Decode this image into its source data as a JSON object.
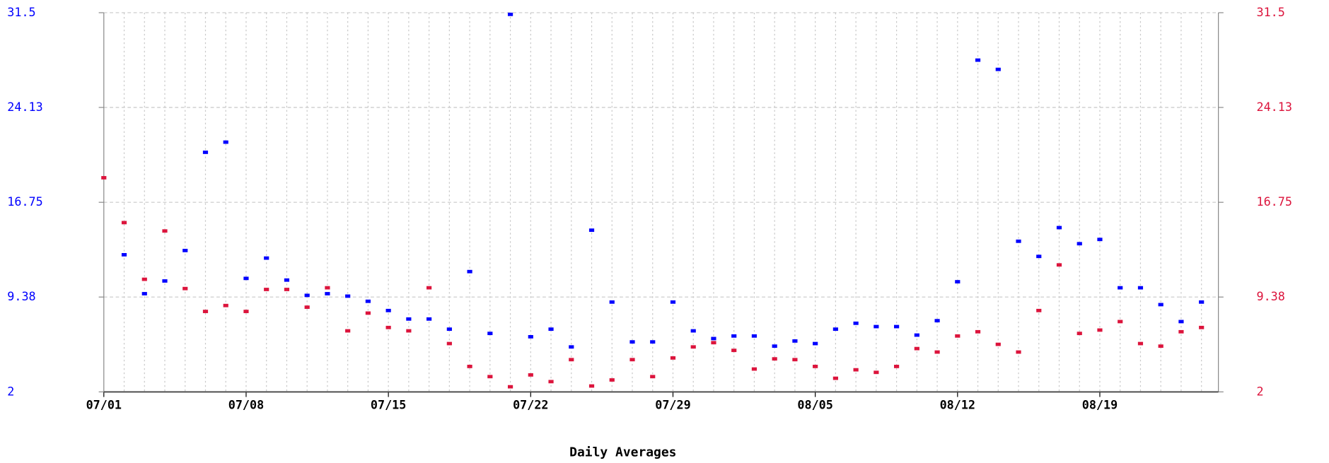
{
  "chart_data": {
    "type": "scatter",
    "title": "Daily Averages",
    "categories": [
      "07/01",
      null,
      null,
      null,
      null,
      null,
      null,
      "07/08",
      null,
      null,
      null,
      null,
      null,
      null,
      "07/15",
      null,
      null,
      null,
      null,
      null,
      null,
      "07/22",
      null,
      null,
      null,
      null,
      null,
      null,
      "07/29",
      null,
      null,
      null,
      null,
      null,
      null,
      "08/05",
      null,
      null,
      null,
      null,
      null,
      null,
      "08/12",
      null,
      null,
      null,
      null,
      null,
      null,
      "08/19",
      null,
      null,
      null,
      null,
      null
    ],
    "ylim": [
      2,
      31.5
    ],
    "yticks": [
      2,
      9.38,
      16.75,
      24.13,
      31.5
    ],
    "y2lim": [
      2,
      31.5
    ],
    "y2ticks": [
      2,
      9.38,
      16.75,
      24.13,
      31.5
    ],
    "y_color": "#0000ff",
    "y2_color": "#dc143c",
    "grid": true,
    "series": [
      {
        "color": "#0000ff",
        "values": [
          null,
          12.67,
          9.64,
          10.63,
          13.0,
          20.64,
          21.43,
          10.83,
          12.41,
          10.7,
          9.51,
          9.64,
          9.45,
          9.05,
          8.33,
          7.67,
          7.67,
          6.88,
          11.36,
          6.55,
          31.37,
          6.29,
          6.88,
          5.5,
          14.58,
          8.99,
          5.89,
          5.89,
          8.99,
          6.75,
          6.15,
          6.35,
          6.35,
          5.56,
          5.96,
          5.76,
          6.88,
          7.34,
          7.08,
          7.08,
          6.42,
          7.54,
          10.57,
          27.81,
          27.09,
          13.72,
          12.54,
          14.78,
          13.53,
          13.86,
          10.1,
          10.1,
          8.79,
          7.47,
          8.99
        ]
      },
      {
        "color": "#dc143c",
        "axis": "y2",
        "values": [
          18.66,
          15.17,
          10.76,
          14.52,
          10.04,
          8.26,
          8.72,
          8.26,
          9.97,
          9.97,
          8.59,
          10.1,
          6.75,
          8.13,
          7.01,
          6.75,
          10.1,
          5.76,
          3.98,
          3.19,
          2.4,
          3.32,
          2.8,
          4.51,
          2.46,
          2.93,
          4.51,
          3.19,
          4.64,
          5.5,
          5.83,
          5.23,
          3.78,
          4.57,
          4.51,
          3.98,
          3.06,
          3.72,
          3.52,
          3.98,
          5.37,
          5.1,
          6.35,
          6.68,
          5.7,
          5.1,
          8.33,
          11.88,
          6.55,
          6.81,
          7.47,
          5.76,
          5.56,
          6.68,
          7.01
        ]
      }
    ]
  }
}
